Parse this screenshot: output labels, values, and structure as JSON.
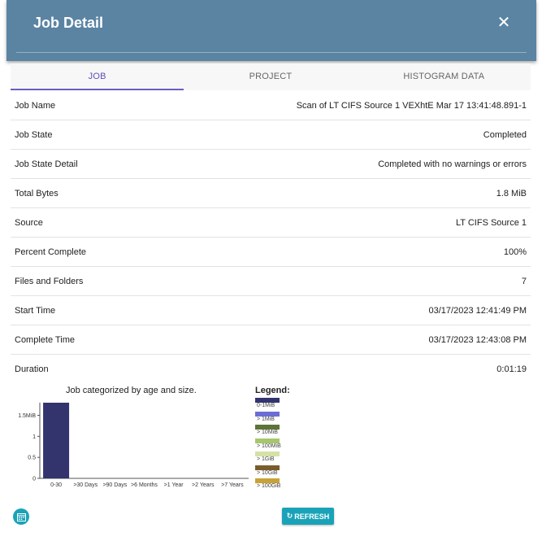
{
  "header": {
    "title": "Job Detail",
    "close_icon": "close-icon"
  },
  "tabs": [
    {
      "label": "JOB",
      "active": true
    },
    {
      "label": "PROJECT",
      "active": false
    },
    {
      "label": "HISTOGRAM DATA",
      "active": false
    }
  ],
  "rows": [
    {
      "label": "Job Name",
      "value": "Scan of LT CIFS Source 1 VEXhtE Mar 17 13:41:48.891-1"
    },
    {
      "label": "Job State",
      "value": "Completed"
    },
    {
      "label": "Job State Detail",
      "value": "Completed with no warnings or errors"
    },
    {
      "label": "Total Bytes",
      "value": "1.8 MiB"
    },
    {
      "label": "Source",
      "value": "LT CIFS Source 1"
    },
    {
      "label": "Percent Complete",
      "value": "100%"
    },
    {
      "label": "Files and Folders",
      "value": "7"
    },
    {
      "label": "Start Time",
      "value": "03/17/2023 12:41:49 PM"
    },
    {
      "label": "Complete Time",
      "value": "03/17/2023 12:43:08 PM"
    },
    {
      "label": "Duration",
      "value": "0:01:19"
    }
  ],
  "chart_data": {
    "type": "bar",
    "title": "Job categorized by age and size.",
    "categories": [
      "0-30",
      ">30 Days",
      ">90 Days",
      ">6 Months",
      ">1 Year",
      ">2 Years",
      ">7 Years"
    ],
    "series": [
      {
        "name": "0-1MiB",
        "color": "#33336e",
        "values": [
          1.8,
          0,
          0,
          0,
          0,
          0,
          0
        ]
      },
      {
        "name": "> 1MiB",
        "color": "#6c6cd6",
        "values": [
          0,
          0,
          0,
          0,
          0,
          0,
          0
        ]
      },
      {
        "name": "> 10MiB",
        "color": "#5e7337",
        "values": [
          0,
          0,
          0,
          0,
          0,
          0,
          0
        ]
      },
      {
        "name": "> 100MiB",
        "color": "#a6c76b",
        "values": [
          0,
          0,
          0,
          0,
          0,
          0,
          0
        ]
      },
      {
        "name": "> 1GiB",
        "color": "#d4e2a6",
        "values": [
          0,
          0,
          0,
          0,
          0,
          0,
          0
        ]
      },
      {
        "name": "> 10GiB",
        "color": "#7a5c2c",
        "values": [
          0,
          0,
          0,
          0,
          0,
          0,
          0
        ]
      },
      {
        "name": "> 100GiB",
        "color": "#c8a236",
        "values": [
          0,
          0,
          0,
          0,
          0,
          0,
          0
        ]
      }
    ],
    "y_ticks": [
      "0",
      "0.5",
      "1",
      "1.5MiB"
    ],
    "y_tick_values": [
      0,
      0.5,
      1,
      1.5
    ],
    "ylim": [
      0,
      1.8
    ],
    "legend_title": "Legend:",
    "legend_position": "right"
  },
  "footer": {
    "refresh_label": "REFRESH",
    "refresh_icon": "refresh-icon",
    "calendar_icon": "calendar-icon"
  }
}
